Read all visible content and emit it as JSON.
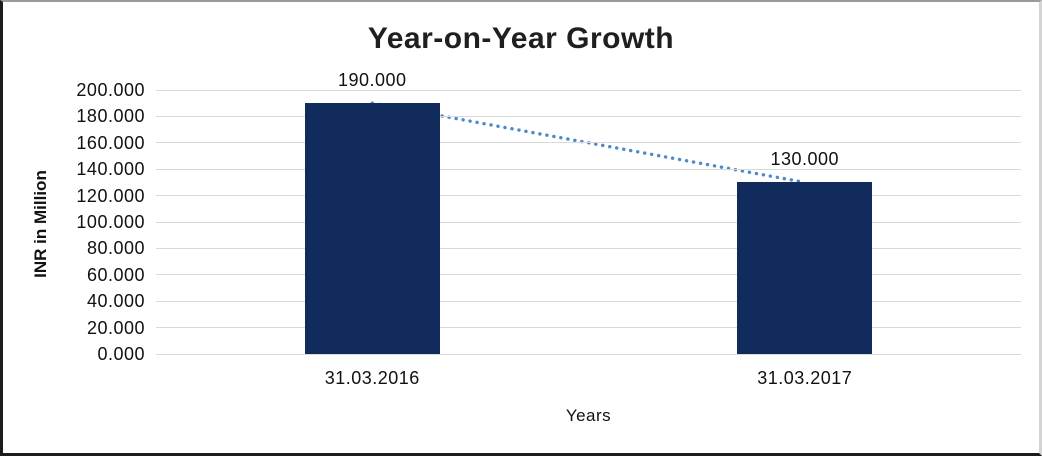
{
  "chart_data": {
    "type": "bar",
    "title": "Year-on-Year Growth",
    "categories": [
      "31.03.2016",
      "31.03.2017"
    ],
    "values": [
      190,
      130
    ],
    "value_labels": [
      "190.000",
      "130.000"
    ],
    "xlabel": "Years",
    "ylabel": "INR in Million",
    "ylim": [
      0,
      200
    ],
    "ytick_step": 20,
    "ytick_labels": [
      "0.000",
      "20.000",
      "40.000",
      "60.000",
      "80.000",
      "100.000",
      "120.000",
      "140.000",
      "160.000",
      "180.000",
      "200.000"
    ],
    "grid": true,
    "legend": false,
    "trendline": {
      "style": "dotted",
      "connects_values": [
        190,
        130
      ]
    },
    "colors": {
      "bar": "#112c5c",
      "trendline": "#4e8ac9",
      "gridline": "#d9d9d9",
      "text": "#111111"
    }
  }
}
